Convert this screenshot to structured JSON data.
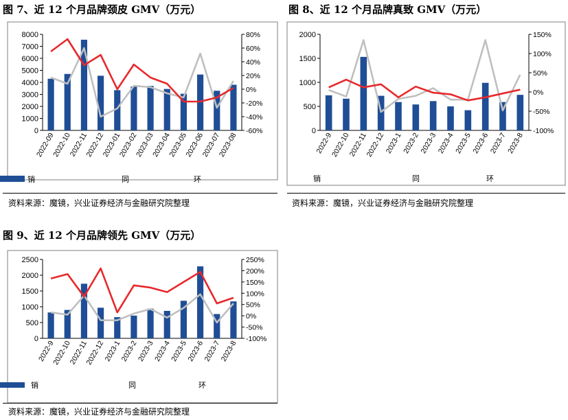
{
  "panels": [
    {
      "title": "图 7、近 12 个月品牌颈皮 GMV（万元）",
      "source": "资料来源：魔镜，兴业证券经济与金融研究院整理"
    },
    {
      "title": "图 8、近 12 个月品牌真致 GMV（万元）",
      "source": "资料来源：魔镜，兴业证券经济与金融研究院整理"
    },
    {
      "title": "图 9、近 12 个月品牌领先 GMV（万元）",
      "source": "资料来源：魔镜，兴业证券经济与金融研究院整理"
    }
  ],
  "colors": {
    "bar": "#1f4e96",
    "yoy": "#e8282b",
    "mom": "#bfbfbf"
  },
  "chart_data": [
    {
      "type": "bar",
      "categories": [
        "2022-09",
        "2022-10",
        "2022-11",
        "2022-12",
        "2023-01",
        "2023-02",
        "2023-03",
        "2023-04",
        "2023-05",
        "2023-06",
        "2023-07",
        "2023-08"
      ],
      "ylim": [
        0,
        8000
      ],
      "yticks": [
        "0",
        "1000",
        "2000",
        "3000",
        "4000",
        "5000",
        "6000",
        "7000",
        "8000"
      ],
      "y2lim": [
        -60,
        80
      ],
      "y2ticks": [
        "-60%",
        "-40%",
        "-20%",
        "0%",
        "20%",
        "40%",
        "60%",
        "80%"
      ],
      "series": [
        {
          "name": "销售额（万元）",
          "type": "bar",
          "axis": "left",
          "values": [
            4300,
            4700,
            7550,
            4550,
            3350,
            3650,
            3700,
            3450,
            3050,
            4650,
            3300,
            3800
          ]
        },
        {
          "name": "同比-右轴",
          "type": "line",
          "axis": "right",
          "values": [
            55,
            73,
            35,
            50,
            0,
            36,
            17,
            8,
            -18,
            -18,
            -12,
            2
          ]
        },
        {
          "name": "环比-右轴",
          "type": "line",
          "axis": "right",
          "values": [
            17,
            8,
            60,
            -40,
            -28,
            5,
            3,
            -6,
            -12,
            52,
            -27,
            12
          ]
        }
      ]
    },
    {
      "type": "bar",
      "categories": [
        "2022-9",
        "2022-10",
        "2022-11",
        "2022-12",
        "2023-1",
        "2023-2",
        "2023-3",
        "2023-4",
        "2023-5",
        "2023-6",
        "2023-7",
        "2023-8"
      ],
      "ylim": [
        0,
        2000
      ],
      "yticks": [
        "0",
        "500",
        "1000",
        "1500",
        "2000"
      ],
      "y2lim": [
        -100,
        150
      ],
      "y2ticks": [
        "-100%",
        "-50%",
        "0%",
        "50%",
        "100%",
        "150%"
      ],
      "series": [
        {
          "name": "销售额（万元）",
          "type": "bar",
          "axis": "left",
          "values": [
            730,
            660,
            1530,
            720,
            590,
            540,
            610,
            500,
            420,
            990,
            590,
            740
          ]
        },
        {
          "name": "同比-右轴",
          "type": "line",
          "axis": "right",
          "values": [
            12,
            32,
            12,
            20,
            -14,
            14,
            -2,
            -6,
            -22,
            -14,
            -4,
            6
          ]
        },
        {
          "name": "环比-右轴",
          "type": "line",
          "axis": "right",
          "values": [
            5,
            -12,
            135,
            -52,
            -18,
            -10,
            10,
            -20,
            -20,
            135,
            -48,
            45
          ]
        }
      ]
    },
    {
      "type": "bar",
      "categories": [
        "2022-9",
        "2022-10",
        "2022-11",
        "2022-12",
        "2023-1",
        "2023-2",
        "2023-3",
        "2023-4",
        "2023-5",
        "2023-6",
        "2023-7",
        "2023-8"
      ],
      "ylim": [
        0,
        2500
      ],
      "yticks": [
        "0",
        "500",
        "1000",
        "1500",
        "2000",
        "2500"
      ],
      "y2lim": [
        -100,
        250
      ],
      "y2ticks": [
        "-100%",
        "-50%",
        "0%",
        "50%",
        "100%",
        "150%",
        "200%",
        "250%"
      ],
      "series": [
        {
          "name": "销售额（万元）",
          "type": "bar",
          "axis": "left",
          "values": [
            820,
            900,
            1730,
            970,
            670,
            720,
            940,
            870,
            1190,
            2280,
            770,
            1170
          ]
        },
        {
          "name": "同比-右轴",
          "type": "line",
          "axis": "right",
          "values": [
            165,
            185,
            85,
            210,
            15,
            135,
            125,
            105,
            150,
            195,
            55,
            80
          ]
        },
        {
          "name": "环比-右轴",
          "type": "line",
          "axis": "right",
          "values": [
            15,
            5,
            90,
            -20,
            -20,
            10,
            30,
            -8,
            35,
            95,
            -30,
            55
          ]
        }
      ]
    }
  ]
}
